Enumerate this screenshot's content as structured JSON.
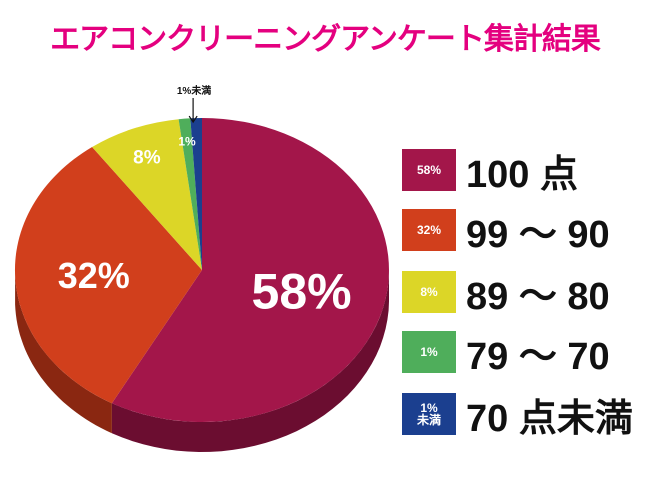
{
  "title": "エアコンクリーニングアンケート集計結果",
  "chart_data": {
    "type": "pie",
    "title": "エアコンクリーニングアンケート集計結果",
    "slices": [
      {
        "label": "100 点",
        "value": 58,
        "value_label": "58%",
        "swatch_label": "58%",
        "color": "#a3164a",
        "side_color": "#6b0d30"
      },
      {
        "label": "99 ～ 90",
        "value": 32,
        "value_label": "32%",
        "swatch_label": "32%",
        "color": "#d13f1c",
        "side_color": "#8a2711"
      },
      {
        "label": "89 ～ 80",
        "value": 8,
        "value_label": "8%",
        "swatch_label": "8%",
        "color": "#dcd627",
        "side_color": "#9a9519"
      },
      {
        "label": "79 ～ 70",
        "value": 1,
        "value_label": "1%",
        "swatch_label": "1%",
        "color": "#4fae5b",
        "side_color": "#34793c"
      },
      {
        "label": "70 点未満",
        "value": 1,
        "value_label": "1%未満",
        "swatch_label": "1% 未満",
        "color": "#1b3f8f",
        "side_color": "#102a60"
      }
    ],
    "legend_position": "right"
  }
}
